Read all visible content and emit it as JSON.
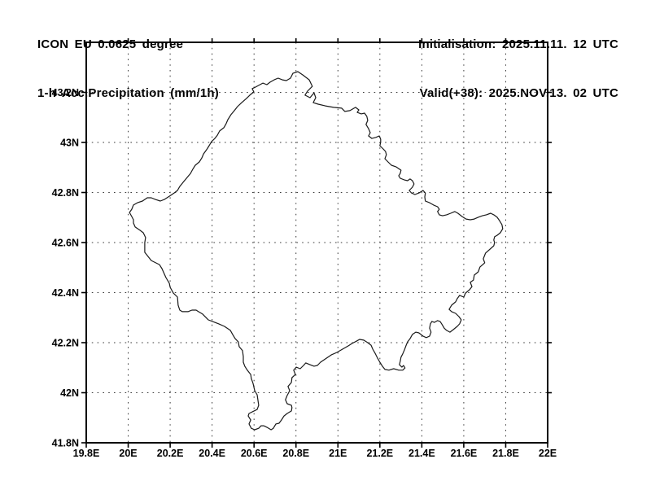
{
  "header": {
    "model": "ICON EU 0.0625 degree",
    "product": "1-h Acc.Precipitation (mm/1h)",
    "initialisation": "Initialisation: 2025.11.11. 12 UTC",
    "valid": "Valid(+38): 2025.NOV.13. 02 UTC"
  },
  "map": {
    "type": "contour-map",
    "region_outline": "kosovo-border",
    "lon_range": [
      19.8,
      22.0
    ],
    "lat_range": [
      41.8,
      43.4
    ],
    "grid": "dotted",
    "background": "#ffffff",
    "line_color": "#000000",
    "x_axis": {
      "values": [
        19.8,
        20,
        20.2,
        20.4,
        20.6,
        20.8,
        21,
        21.2,
        21.4,
        21.6,
        21.8,
        22
      ],
      "labels": [
        "19.8E",
        "20E",
        "20.2E",
        "20.4E",
        "20.6E",
        "20.8E",
        "21E",
        "21.2E",
        "21.4E",
        "21.6E",
        "21.8E",
        "22E"
      ]
    },
    "y_axis": {
      "values": [
        41.8,
        42,
        42.2,
        42.4,
        42.6,
        42.8,
        43,
        43.2
      ],
      "labels": [
        "41.8N",
        "42N",
        "42.2N",
        "42.4N",
        "42.6N",
        "42.8N",
        "43N",
        "43.2N"
      ]
    },
    "outline_lonlat": [
      [
        20.785,
        43.276
      ],
      [
        20.809,
        43.283
      ],
      [
        20.832,
        43.27
      ],
      [
        20.863,
        43.25
      ],
      [
        20.878,
        43.224
      ],
      [
        20.855,
        43.205
      ],
      [
        20.843,
        43.189
      ],
      [
        20.867,
        43.179
      ],
      [
        20.886,
        43.198
      ],
      [
        20.894,
        43.179
      ],
      [
        20.882,
        43.159
      ],
      [
        20.906,
        43.153
      ],
      [
        20.94,
        43.146
      ],
      [
        20.979,
        43.14
      ],
      [
        21.018,
        43.137
      ],
      [
        21.033,
        43.124
      ],
      [
        21.057,
        43.127
      ],
      [
        21.084,
        43.14
      ],
      [
        21.1,
        43.13
      ],
      [
        21.092,
        43.12
      ],
      [
        21.111,
        43.114
      ],
      [
        21.127,
        43.117
      ],
      [
        21.138,
        43.104
      ],
      [
        21.142,
        43.088
      ],
      [
        21.134,
        43.072
      ],
      [
        21.146,
        43.055
      ],
      [
        21.154,
        43.039
      ],
      [
        21.146,
        43.026
      ],
      [
        21.162,
        43.016
      ],
      [
        21.181,
        43.02
      ],
      [
        21.197,
        43.026
      ],
      [
        21.204,
        43.013
      ],
      [
        21.204,
        43.0
      ],
      [
        21.2,
        42.987
      ],
      [
        21.216,
        42.974
      ],
      [
        21.227,
        42.964
      ],
      [
        21.231,
        42.951
      ],
      [
        21.224,
        42.935
      ],
      [
        21.239,
        42.922
      ],
      [
        21.255,
        42.909
      ],
      [
        21.278,
        42.902
      ],
      [
        21.301,
        42.889
      ],
      [
        21.297,
        42.876
      ],
      [
        21.29,
        42.867
      ],
      [
        21.297,
        42.857
      ],
      [
        21.317,
        42.85
      ],
      [
        21.332,
        42.847
      ],
      [
        21.344,
        42.854
      ],
      [
        21.355,
        42.847
      ],
      [
        21.363,
        42.834
      ],
      [
        21.355,
        42.821
      ],
      [
        21.34,
        42.808
      ],
      [
        21.351,
        42.798
      ],
      [
        21.367,
        42.792
      ],
      [
        21.386,
        42.798
      ],
      [
        21.406,
        42.808
      ],
      [
        21.417,
        42.798
      ],
      [
        21.414,
        42.782
      ],
      [
        21.417,
        42.766
      ],
      [
        21.437,
        42.759
      ],
      [
        21.456,
        42.75
      ],
      [
        21.475,
        42.743
      ],
      [
        21.483,
        42.733
      ],
      [
        21.475,
        42.724
      ],
      [
        21.483,
        42.711
      ],
      [
        21.499,
        42.707
      ],
      [
        21.518,
        42.711
      ],
      [
        21.538,
        42.717
      ],
      [
        21.557,
        42.724
      ],
      [
        21.572,
        42.717
      ],
      [
        21.592,
        42.704
      ],
      [
        21.611,
        42.694
      ],
      [
        21.631,
        42.691
      ],
      [
        21.65,
        42.694
      ],
      [
        21.669,
        42.701
      ],
      [
        21.689,
        42.707
      ],
      [
        21.708,
        42.711
      ],
      [
        21.728,
        42.717
      ],
      [
        21.743,
        42.711
      ],
      [
        21.759,
        42.701
      ],
      [
        21.77,
        42.688
      ],
      [
        21.782,
        42.672
      ],
      [
        21.786,
        42.655
      ],
      [
        21.774,
        42.639
      ],
      [
        21.759,
        42.629
      ],
      [
        21.747,
        42.623
      ],
      [
        21.743,
        42.61
      ],
      [
        21.747,
        42.6
      ],
      [
        21.743,
        42.587
      ],
      [
        21.704,
        42.558
      ],
      [
        21.693,
        42.535
      ],
      [
        21.7,
        42.519
      ],
      [
        21.677,
        42.502
      ],
      [
        21.669,
        42.483
      ],
      [
        21.65,
        42.47
      ],
      [
        21.646,
        42.45
      ],
      [
        21.631,
        42.441
      ],
      [
        21.639,
        42.424
      ],
      [
        21.627,
        42.411
      ],
      [
        21.608,
        42.398
      ],
      [
        21.6,
        42.382
      ],
      [
        21.58,
        42.389
      ],
      [
        21.569,
        42.376
      ],
      [
        21.561,
        42.363
      ],
      [
        21.542,
        42.35
      ],
      [
        21.53,
        42.333
      ],
      [
        21.542,
        42.324
      ],
      [
        21.561,
        42.317
      ],
      [
        21.577,
        42.304
      ],
      [
        21.588,
        42.291
      ],
      [
        21.58,
        42.275
      ],
      [
        21.569,
        42.265
      ],
      [
        21.55,
        42.252
      ],
      [
        21.534,
        42.242
      ],
      [
        21.518,
        42.249
      ],
      [
        21.507,
        42.258
      ],
      [
        21.495,
        42.275
      ],
      [
        21.487,
        42.285
      ],
      [
        21.475,
        42.288
      ],
      [
        21.46,
        42.281
      ],
      [
        21.448,
        42.285
      ],
      [
        21.441,
        42.275
      ],
      [
        21.437,
        42.258
      ],
      [
        21.444,
        42.242
      ],
      [
        21.437,
        42.226
      ],
      [
        21.421,
        42.22
      ],
      [
        21.406,
        42.226
      ],
      [
        21.386,
        42.239
      ],
      [
        21.371,
        42.242
      ],
      [
        21.355,
        42.233
      ],
      [
        21.344,
        42.216
      ],
      [
        21.332,
        42.203
      ],
      [
        21.324,
        42.187
      ],
      [
        21.317,
        42.171
      ],
      [
        21.309,
        42.155
      ],
      [
        21.301,
        42.142
      ],
      [
        21.297,
        42.125
      ],
      [
        21.293,
        42.112
      ],
      [
        21.305,
        42.102
      ],
      [
        21.313,
        42.109
      ],
      [
        21.32,
        42.099
      ],
      [
        21.309,
        42.09
      ],
      [
        21.29,
        42.09
      ],
      [
        21.266,
        42.096
      ],
      [
        21.243,
        42.09
      ],
      [
        21.224,
        42.093
      ],
      [
        21.212,
        42.106
      ],
      [
        21.2,
        42.122
      ],
      [
        21.189,
        42.138
      ],
      [
        21.177,
        42.158
      ],
      [
        21.166,
        42.174
      ],
      [
        21.158,
        42.19
      ],
      [
        21.142,
        42.2
      ],
      [
        21.123,
        42.21
      ],
      [
        21.103,
        42.213
      ],
      [
        21.088,
        42.206
      ],
      [
        21.068,
        42.197
      ],
      [
        21.049,
        42.187
      ],
      [
        21.022,
        42.174
      ],
      [
        20.995,
        42.161
      ],
      [
        20.968,
        42.151
      ],
      [
        20.94,
        42.135
      ],
      [
        20.917,
        42.122
      ],
      [
        20.902,
        42.109
      ],
      [
        20.886,
        42.106
      ],
      [
        20.867,
        42.112
      ],
      [
        20.847,
        42.119
      ],
      [
        20.836,
        42.109
      ],
      [
        20.82,
        42.096
      ],
      [
        20.801,
        42.102
      ],
      [
        20.789,
        42.09
      ],
      [
        20.797,
        42.073
      ],
      [
        20.781,
        42.06
      ],
      [
        20.778,
        42.041
      ],
      [
        20.762,
        42.025
      ],
      [
        20.77,
        42.008
      ],
      [
        20.758,
        41.989
      ],
      [
        20.75,
        41.972
      ],
      [
        20.758,
        41.956
      ],
      [
        20.778,
        41.95
      ],
      [
        20.781,
        41.94
      ],
      [
        20.778,
        41.927
      ],
      [
        20.758,
        41.917
      ],
      [
        20.743,
        41.907
      ],
      [
        20.731,
        41.891
      ],
      [
        20.719,
        41.878
      ],
      [
        20.704,
        41.875
      ],
      [
        20.692,
        41.858
      ],
      [
        20.681,
        41.852
      ],
      [
        20.661,
        41.862
      ],
      [
        20.646,
        41.868
      ],
      [
        20.634,
        41.868
      ],
      [
        20.622,
        41.858
      ],
      [
        20.603,
        41.852
      ],
      [
        20.587,
        41.858
      ],
      [
        20.576,
        41.875
      ],
      [
        20.584,
        41.891
      ],
      [
        20.572,
        41.907
      ],
      [
        20.576,
        41.917
      ],
      [
        20.615,
        41.933
      ],
      [
        20.622,
        41.95
      ],
      [
        20.615,
        41.992
      ],
      [
        20.603,
        42.008
      ],
      [
        20.595,
        42.038
      ],
      [
        20.587,
        42.057
      ],
      [
        20.584,
        42.073
      ],
      [
        20.568,
        42.09
      ],
      [
        20.556,
        42.106
      ],
      [
        20.549,
        42.122
      ],
      [
        20.549,
        42.145
      ],
      [
        20.545,
        42.168
      ],
      [
        20.529,
        42.184
      ],
      [
        20.525,
        42.203
      ],
      [
        20.51,
        42.216
      ],
      [
        20.498,
        42.233
      ],
      [
        20.487,
        42.249
      ],
      [
        20.459,
        42.265
      ],
      [
        20.432,
        42.275
      ],
      [
        20.413,
        42.281
      ],
      [
        20.382,
        42.291
      ],
      [
        20.355,
        42.314
      ],
      [
        20.335,
        42.324
      ],
      [
        20.324,
        42.33
      ],
      [
        20.304,
        42.33
      ],
      [
        20.285,
        42.324
      ],
      [
        20.258,
        42.324
      ],
      [
        20.246,
        42.33
      ],
      [
        20.238,
        42.35
      ],
      [
        20.235,
        42.382
      ],
      [
        20.215,
        42.398
      ],
      [
        20.2,
        42.421
      ],
      [
        20.196,
        42.437
      ],
      [
        20.18,
        42.46
      ],
      [
        20.161,
        42.496
      ],
      [
        20.149,
        42.512
      ],
      [
        20.11,
        42.528
      ],
      [
        20.079,
        42.561
      ],
      [
        20.079,
        42.6
      ],
      [
        20.083,
        42.62
      ],
      [
        20.072,
        42.639
      ],
      [
        20.056,
        42.649
      ],
      [
        20.033,
        42.662
      ],
      [
        20.025,
        42.678
      ],
      [
        20.025,
        42.691
      ],
      [
        20.017,
        42.704
      ],
      [
        20.006,
        42.72
      ],
      [
        20.017,
        42.733
      ],
      [
        20.025,
        42.75
      ],
      [
        20.044,
        42.759
      ],
      [
        20.068,
        42.766
      ],
      [
        20.091,
        42.779
      ],
      [
        20.11,
        42.779
      ],
      [
        20.13,
        42.772
      ],
      [
        20.153,
        42.766
      ],
      [
        20.172,
        42.772
      ],
      [
        20.196,
        42.785
      ],
      [
        20.219,
        42.798
      ],
      [
        20.235,
        42.808
      ],
      [
        20.246,
        42.824
      ],
      [
        20.262,
        42.841
      ],
      [
        20.281,
        42.86
      ],
      [
        20.297,
        42.876
      ],
      [
        20.308,
        42.893
      ],
      [
        20.32,
        42.909
      ],
      [
        20.339,
        42.922
      ],
      [
        20.351,
        42.938
      ],
      [
        20.359,
        42.954
      ],
      [
        20.374,
        42.971
      ],
      [
        20.386,
        42.987
      ],
      [
        20.397,
        43.003
      ],
      [
        20.413,
        43.016
      ],
      [
        20.425,
        43.029
      ],
      [
        20.436,
        43.046
      ],
      [
        20.456,
        43.059
      ],
      [
        20.467,
        43.075
      ],
      [
        20.475,
        43.091
      ],
      [
        20.49,
        43.111
      ],
      [
        20.506,
        43.127
      ],
      [
        20.521,
        43.143
      ],
      [
        20.541,
        43.159
      ],
      [
        20.564,
        43.176
      ],
      [
        20.58,
        43.189
      ],
      [
        20.599,
        43.202
      ],
      [
        20.591,
        43.215
      ],
      [
        20.607,
        43.221
      ],
      [
        20.622,
        43.228
      ],
      [
        20.642,
        43.237
      ],
      [
        20.661,
        43.231
      ],
      [
        20.677,
        43.241
      ],
      [
        20.696,
        43.25
      ],
      [
        20.715,
        43.257
      ],
      [
        20.735,
        43.25
      ],
      [
        20.754,
        43.247
      ],
      [
        20.774,
        43.257
      ]
    ]
  }
}
